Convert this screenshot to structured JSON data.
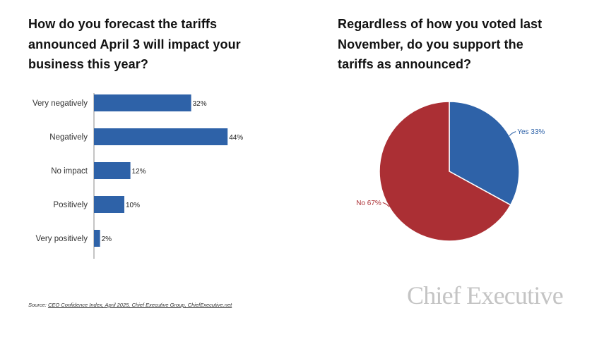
{
  "chart_data": [
    {
      "type": "bar",
      "orientation": "horizontal",
      "title_lines": [
        "How do you forecast the tariffs",
        "announced April 3 will impact your",
        "business this year?"
      ],
      "categories": [
        "Very negatively",
        "Negatively",
        "No impact",
        "Positively",
        "Very positively"
      ],
      "values": [
        32,
        44,
        12,
        10,
        2
      ],
      "labels": [
        "32%",
        "44%",
        "12%",
        "10%",
        "2%"
      ],
      "xlim": [
        0,
        100
      ],
      "grid": false,
      "color": "#2e62a8"
    },
    {
      "type": "pie",
      "title_lines": [
        "Regardless of how you voted last",
        "November, do you support the",
        "tariffs as announced?"
      ],
      "slices": [
        {
          "label": "Yes 33%",
          "value": 33,
          "color": "#2e62a8"
        },
        {
          "label": "No 67%",
          "value": 67,
          "color": "#ab2f34"
        }
      ]
    }
  ],
  "source": {
    "prefix": "Source: ",
    "text": "CEO Confidence Index, April 2025, Chief Executive Group, ChiefExecutive.net"
  },
  "logo_text": "Chief Executive"
}
